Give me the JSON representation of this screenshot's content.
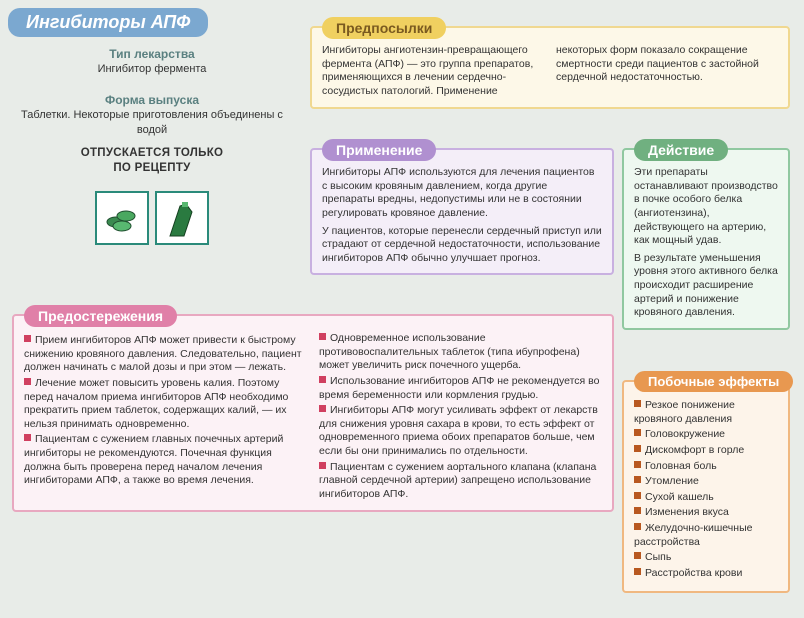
{
  "title": "Ингибиторы АПФ",
  "left": {
    "type_label": "Тип лекарства",
    "type_text": "Ингибитор фермента",
    "form_label": "Форма выпуска",
    "form_text": "Таблетки. Некоторые приготовления объединены с водой",
    "rx1": "ОТПУСКАЕТСЯ ТОЛЬКО",
    "rx2": "ПО РЕЦЕПТУ"
  },
  "prereq": {
    "header": "Предпосылки",
    "text": "Ингибиторы ангиотензин-превращающего фермента (АПФ) — это группа препаратов, применяющихся в лечении сердечно-сосудистых патологий. Применение некоторых форм показало сокращение смертности среди пациентов с застойной сердечной недостаточностью."
  },
  "app": {
    "header": "Применение",
    "p1": "Ингибиторы АПФ используются для лечения пациентов с высоким кровяным давлением, когда другие препараты вредны, недопустимы или не в состоянии регулировать кровяное давление.",
    "p2": "У пациентов, которые перенесли сердечный приступ или страдают от сердечной недостаточности, использование ингибиторов АПФ обычно улучшает прогноз."
  },
  "action": {
    "header": "Действие",
    "p1": "Эти препараты останавливают производство в почке особого белка (ангиотензина), действующего на артерию, как мощный удав.",
    "p2": "В результате уменьшения уровня этого активного белка происходит расширение артерий и понижение кровяного давления."
  },
  "warn": {
    "header": "Предостережения",
    "items": [
      "Прием ингибиторов АПФ может привести к быстрому снижению кровяного давления. Следовательно, пациент должен начинать с малой дозы и при этом — лежать.",
      "Лечение может повысить уровень калия. Поэтому перед началом приема ингибиторов АПФ необходимо прекратить прием таблеток, содержащих калий, — их нельзя принимать одновременно.",
      "Пациентам с сужением главных почечных артерий ингибиторы не рекомендуются. Почечная функция должна быть проверена перед началом лечения ингибиторами АПФ, а также во время лечения.",
      "Одновременное использование противовоспалительных таблеток (типа ибупрофена) может увеличить риск почечного ущерба.",
      "Использование ингибиторов АПФ не рекомендуется во время беременности или кормления грудью.",
      "Ингибиторы АПФ могут усиливать эффект от лекарств для снижения уровня сахара в крови, то есть эффект от одновременного приема обоих препаратов больше, чем если бы они принимались по отдельности.",
      "Пациентам с сужением аортального клапана (клапана главной сердечной артерии) запрещено использование ингибиторов АПФ."
    ]
  },
  "side": {
    "header": "Побочные эффекты",
    "items": [
      "Резкое понижение кровяного давления",
      "Головокружение",
      "Дискомфорт в горле",
      "Головная боль",
      "Утомление",
      "Сухой кашель",
      "Изменения вкуса",
      "Желудочно-кишечные расстройства",
      "Сыпь",
      "Расстройства крови"
    ]
  }
}
